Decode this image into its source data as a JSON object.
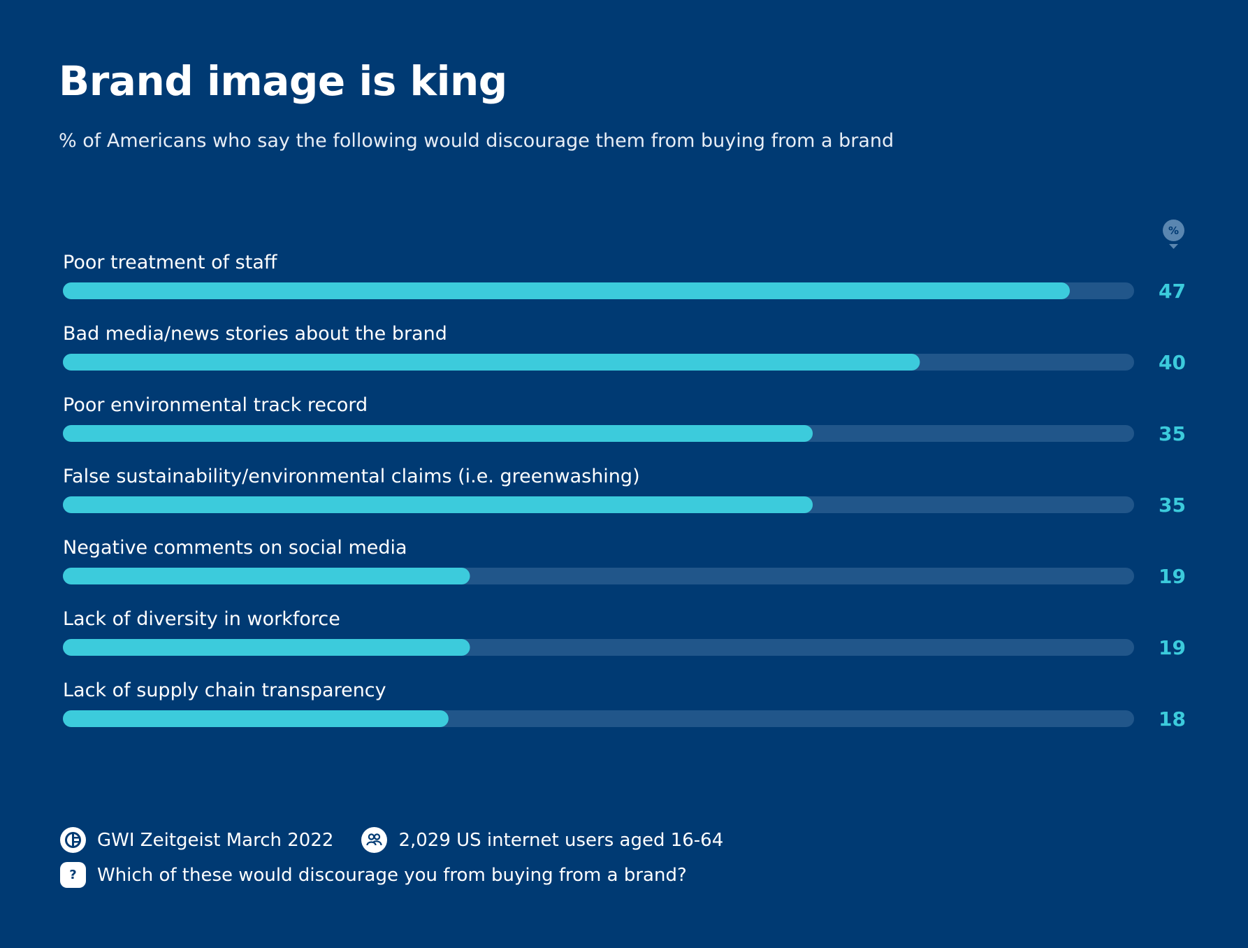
{
  "title": "Brand image is king",
  "subtitle": "% of Americans who say the following would discourage them from buying from a brand",
  "unit_badge": "%",
  "colors": {
    "background": "#003a73",
    "bar_fill": "#3ccbdc",
    "bar_track": "#21568a",
    "value_text": "#3ccbdc",
    "badge": "#5a86b0"
  },
  "chart_data": {
    "type": "bar",
    "orientation": "horizontal",
    "categories": [
      "Poor treatment of staff",
      "Bad media/news stories about the brand",
      "Poor environmental track record",
      "False sustainability/environmental claims (i.e. greenwashing)",
      "Negative comments on social media",
      "Lack of diversity in workforce",
      "Lack of supply chain transparency"
    ],
    "values": [
      47,
      40,
      35,
      35,
      19,
      19,
      18
    ],
    "value_labels": [
      "47",
      "40",
      "35",
      "35",
      "19",
      "19",
      "18"
    ],
    "xlim": [
      0,
      50
    ],
    "grid": false,
    "legend": "none"
  },
  "footer": {
    "source": "GWI Zeitgeist March 2022",
    "sample": "2,029 US internet users aged 16-64",
    "question": "Which of these would discourage you from buying from a brand?",
    "question_icon": "?"
  }
}
